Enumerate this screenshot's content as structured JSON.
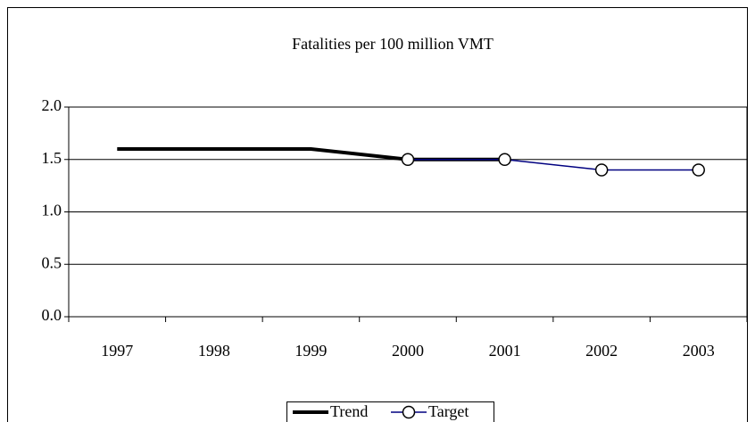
{
  "chart_data": {
    "type": "line",
    "title": "Fatalities per 100 million VMT",
    "categories": [
      "1997",
      "1998",
      "1999",
      "2000",
      "2001",
      "2002",
      "2003"
    ],
    "series": [
      {
        "name": "Trend",
        "color": "#000000",
        "values": [
          1.6,
          1.6,
          1.6,
          1.5,
          1.5,
          null,
          null
        ]
      },
      {
        "name": "Target",
        "color": "#000080",
        "values": [
          null,
          null,
          null,
          1.5,
          1.5,
          1.4,
          1.4
        ]
      }
    ],
    "ylim": [
      0,
      2
    ],
    "yticks": [
      {
        "value": 0,
        "label": "0.0"
      },
      {
        "value": 0.5,
        "label": "0.5"
      },
      {
        "value": 1,
        "label": "1.0"
      },
      {
        "value": 1.5,
        "label": "1.5"
      },
      {
        "value": 2,
        "label": "2.0"
      }
    ],
    "grid": true,
    "legend": "bottom"
  }
}
